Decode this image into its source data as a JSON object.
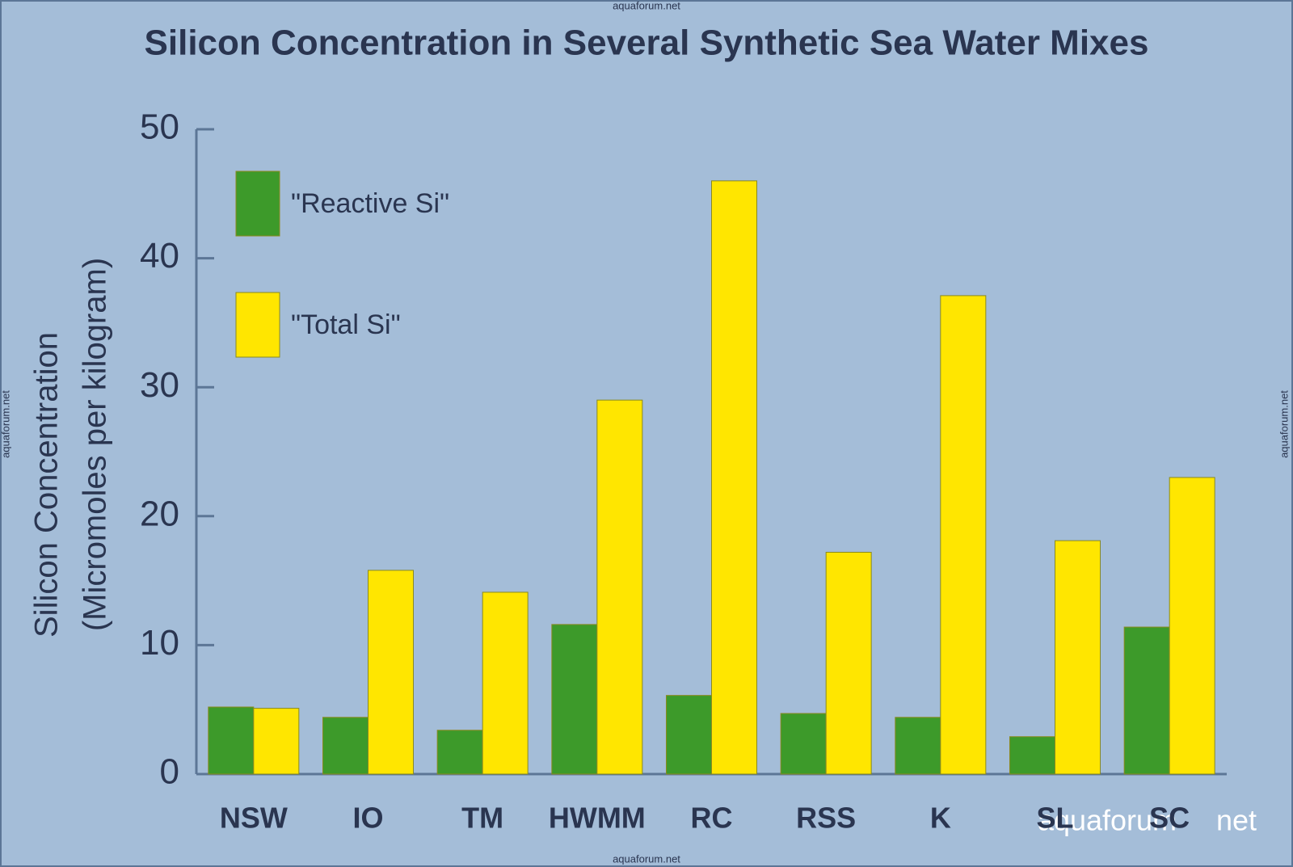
{
  "chart_data": {
    "type": "bar",
    "title": "Silicon Concentration in Several Synthetic Sea Water Mixes",
    "y_label": [
      "Silicon Concentration",
      "(Micromoles per kilogram)"
    ],
    "categories": [
      "NSW",
      "IO",
      "TM",
      "HWMM",
      "RC",
      "RSS",
      "K",
      "SL",
      "SC"
    ],
    "series": [
      {
        "name": "\"Reactive Si\"",
        "color": "#3d9a2a",
        "values": [
          5.2,
          4.4,
          3.4,
          11.6,
          6.1,
          4.7,
          4.4,
          2.9,
          11.4
        ]
      },
      {
        "name": "\"Total Si\"",
        "color": "#ffe600",
        "values": [
          5.1,
          15.8,
          14.1,
          29,
          46,
          17.2,
          37.1,
          18.1,
          23
        ]
      }
    ],
    "ylim": [
      0,
      50
    ],
    "yticks": [
      0,
      10,
      20,
      30,
      40,
      50
    ],
    "watermarks": [
      "aquaforum.net",
      "aquaforum",
      "net"
    ]
  }
}
